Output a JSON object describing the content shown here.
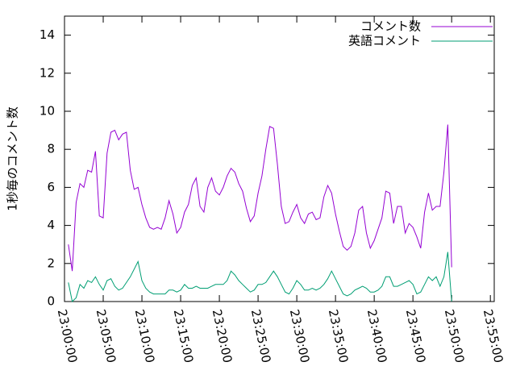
{
  "chart_data": {
    "type": "line",
    "ylabel": "1秒毎のコメント数",
    "x": [
      "23:00:30",
      "23:01:00",
      "23:01:30",
      "23:02:00",
      "23:02:30",
      "23:03:00",
      "23:03:30",
      "23:04:00",
      "23:04:30",
      "23:05:00",
      "23:05:30",
      "23:06:00",
      "23:06:30",
      "23:07:00",
      "23:07:30",
      "23:08:00",
      "23:08:30",
      "23:09:00",
      "23:09:30",
      "23:10:00",
      "23:10:30",
      "23:11:00",
      "23:11:30",
      "23:12:00",
      "23:12:30",
      "23:13:00",
      "23:13:30",
      "23:14:00",
      "23:14:30",
      "23:15:00",
      "23:15:30",
      "23:16:00",
      "23:16:30",
      "23:17:00",
      "23:17:30",
      "23:18:00",
      "23:18:30",
      "23:19:00",
      "23:19:30",
      "23:20:00",
      "23:20:30",
      "23:21:00",
      "23:21:30",
      "23:22:00",
      "23:22:30",
      "23:23:00",
      "23:23:30",
      "23:24:00",
      "23:24:30",
      "23:25:00",
      "23:25:30",
      "23:26:00",
      "23:26:30",
      "23:27:00",
      "23:27:30",
      "23:28:00",
      "23:28:30",
      "23:29:00",
      "23:29:30",
      "23:30:00",
      "23:30:30",
      "23:31:00",
      "23:31:30",
      "23:32:00",
      "23:32:30",
      "23:33:00",
      "23:33:30",
      "23:34:00",
      "23:34:30",
      "23:35:00",
      "23:35:30",
      "23:36:00",
      "23:36:30",
      "23:37:00",
      "23:37:30",
      "23:38:00",
      "23:38:30",
      "23:39:00",
      "23:39:30",
      "23:40:00",
      "23:40:30",
      "23:41:00",
      "23:41:30",
      "23:42:00",
      "23:42:30",
      "23:43:00",
      "23:43:30",
      "23:44:00",
      "23:44:30",
      "23:45:00",
      "23:45:30",
      "23:46:00",
      "23:46:30",
      "23:47:00",
      "23:47:30",
      "23:48:00",
      "23:48:30",
      "23:49:00",
      "23:49:30",
      "23:50:00"
    ],
    "series": [
      {
        "name": "コメント数",
        "color": "#9400d3",
        "values": [
          3.0,
          1.6,
          5.2,
          6.2,
          6.0,
          6.9,
          6.8,
          7.9,
          4.5,
          4.4,
          7.8,
          8.9,
          9.0,
          8.5,
          8.8,
          8.9,
          6.9,
          5.9,
          6.0,
          5.1,
          4.4,
          3.9,
          3.8,
          3.9,
          3.8,
          4.4,
          5.3,
          4.6,
          3.6,
          3.9,
          4.7,
          5.1,
          6.1,
          6.5,
          5.0,
          4.7,
          6.0,
          6.5,
          5.8,
          5.6,
          6.0,
          6.6,
          7.0,
          6.8,
          6.2,
          5.8,
          4.9,
          4.2,
          4.5,
          5.7,
          6.6,
          8.0,
          9.2,
          9.1,
          7.2,
          5.0,
          4.1,
          4.2,
          4.7,
          5.1,
          4.4,
          4.1,
          4.6,
          4.7,
          4.3,
          4.4,
          5.5,
          6.1,
          5.7,
          4.6,
          3.7,
          2.9,
          2.7,
          2.9,
          3.6,
          4.8,
          5.0,
          3.6,
          2.8,
          3.2,
          3.8,
          4.4,
          5.8,
          5.7,
          4.1,
          5.0,
          5.0,
          3.6,
          4.1,
          3.9,
          3.4,
          2.8,
          4.7,
          5.7,
          4.8,
          5.0,
          5.0,
          6.8,
          9.3,
          1.8
        ]
      },
      {
        "name": "英語コメント",
        "color": "#009e73",
        "values": [
          1.0,
          0.0,
          0.2,
          0.9,
          0.7,
          1.1,
          1.0,
          1.3,
          0.9,
          0.6,
          1.1,
          1.2,
          0.8,
          0.6,
          0.7,
          1.0,
          1.3,
          1.7,
          2.1,
          1.1,
          0.7,
          0.5,
          0.4,
          0.4,
          0.4,
          0.4,
          0.6,
          0.6,
          0.5,
          0.6,
          0.9,
          0.7,
          0.7,
          0.8,
          0.7,
          0.7,
          0.7,
          0.8,
          0.9,
          0.9,
          0.9,
          1.1,
          1.6,
          1.4,
          1.1,
          0.9,
          0.7,
          0.5,
          0.6,
          0.9,
          0.9,
          1.0,
          1.3,
          1.6,
          1.3,
          0.9,
          0.5,
          0.4,
          0.7,
          1.1,
          0.9,
          0.6,
          0.6,
          0.7,
          0.6,
          0.7,
          0.9,
          1.2,
          1.6,
          1.2,
          0.8,
          0.4,
          0.3,
          0.4,
          0.6,
          0.7,
          0.8,
          0.7,
          0.5,
          0.5,
          0.6,
          0.8,
          1.3,
          1.3,
          0.8,
          0.8,
          0.9,
          1.0,
          1.1,
          0.9,
          0.4,
          0.5,
          0.9,
          1.3,
          1.1,
          1.3,
          0.8,
          1.3,
          2.6,
          0.0
        ]
      }
    ],
    "xlim": [
      "23:00:00",
      "23:55:30"
    ],
    "xticks": [
      "23:00:00",
      "23:05:00",
      "23:10:00",
      "23:15:00",
      "23:20:00",
      "23:25:00",
      "23:30:00",
      "23:35:00",
      "23:40:00",
      "23:45:00",
      "23:50:00",
      "23:55:00"
    ],
    "ylim": [
      0,
      15
    ],
    "yticks": [
      0,
      2,
      4,
      6,
      8,
      10,
      12,
      14
    ],
    "legend": "top-right"
  }
}
